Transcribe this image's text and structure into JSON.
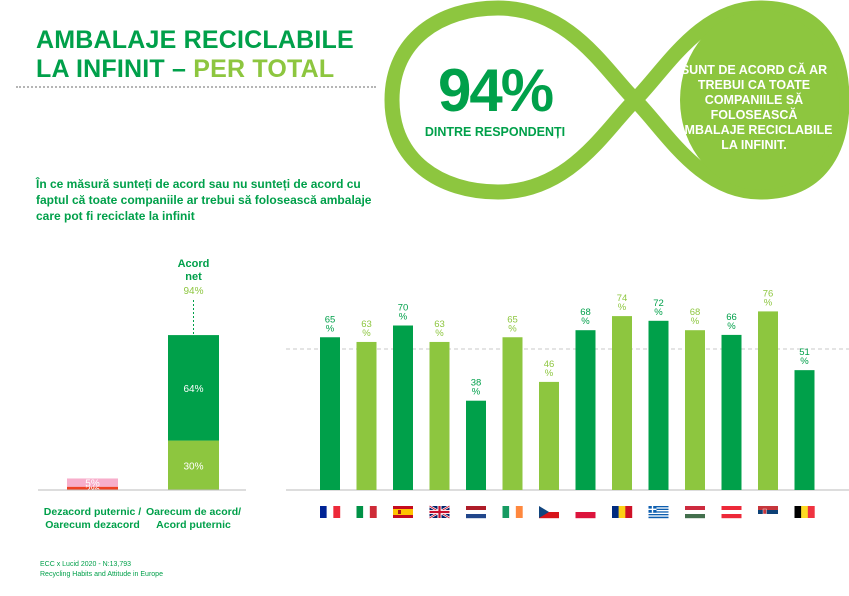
{
  "header": {
    "title_line1": "AMBALAJE RECICLABILE",
    "title_line2_a": "LA INFINIT – ",
    "title_line2_b": "PER TOTAL"
  },
  "highlight": {
    "percent": "94%",
    "sub": "DINTRE RESPONDENȚI",
    "statement": "SUNT DE ACORD CĂ AR TREBUI CA TOATE COMPANIILE SĂ FOLOSEASCĂ AMBALAJE RECICLABILE LA INFINIT."
  },
  "question": "În ce măsură sunteți de acord sau nu sunteți de acord cu faptul că toate companiile ar trebui să folosească ambalaje care pot fi reciclate la infinit",
  "footer": {
    "line1": "ECC x Lucid 2020 - N:13,793",
    "line2": "Recycling Habits and Attitude in Europe"
  },
  "colors": {
    "dark_green": "#00a04a",
    "light_green": "#8dc63f",
    "pink": "#f7aecb",
    "red": "#ef4123"
  },
  "chart_data": [
    {
      "type": "bar",
      "stacked": true,
      "categories": [
        "Dezacord puternic / Oarecum dezacord",
        "Oarecum de acord/ Acord puternic"
      ],
      "series": [
        {
          "name": "Oarecum",
          "values": [
            2,
            30
          ],
          "colors": [
            "#ef4123",
            "#8dc63f"
          ]
        },
        {
          "name": "Puternic",
          "values": [
            5,
            64
          ],
          "colors": [
            "#f7aecb",
            "#00a04a"
          ]
        }
      ],
      "segment_labels": [
        [
          "2%",
          "5%"
        ],
        [
          "30%",
          "64%"
        ]
      ],
      "net_label": "Acord net",
      "net_value": 94,
      "net_value_label": "94%"
    },
    {
      "type": "bar",
      "categories": [
        "France",
        "Italy",
        "Spain",
        "United Kingdom",
        "Netherlands",
        "Ireland",
        "Czech Republic",
        "Poland",
        "Romania",
        "Greece",
        "Hungary",
        "Austria",
        "Serbia",
        "Belgium"
      ],
      "values": [
        65,
        63,
        70,
        63,
        38,
        65,
        46,
        68,
        74,
        72,
        68,
        66,
        76,
        51
      ],
      "bar_colors": [
        "#00a04a",
        "#8dc63f",
        "#00a04a",
        "#8dc63f",
        "#00a04a",
        "#8dc63f",
        "#8dc63f",
        "#00a04a",
        "#8dc63f",
        "#00a04a",
        "#8dc63f",
        "#00a04a",
        "#8dc63f",
        "#00a04a"
      ],
      "value_labels": [
        "65 %",
        "63 %",
        "70 %",
        "63 %",
        "38 %",
        "65 %",
        "46 %",
        "68 %",
        "74 %",
        "72 %",
        "68 %",
        "66 %",
        "76 %",
        "51 %"
      ],
      "reference_line": 60,
      "ylim": [
        0,
        80
      ]
    }
  ]
}
